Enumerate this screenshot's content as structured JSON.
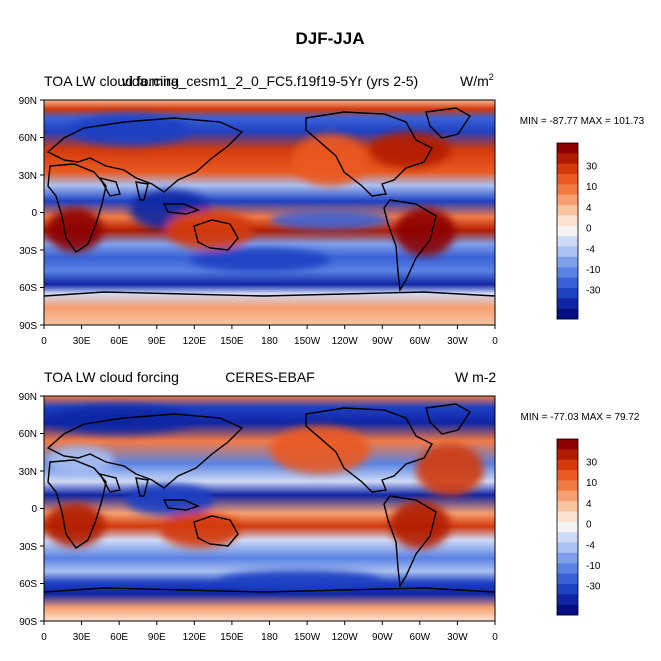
{
  "figure": {
    "title": "DJF-JJA"
  },
  "panels": [
    {
      "left_label": "TOA LW cloud forcing",
      "center_label": "vida.mira_cesm1_2_0_FC5.f19f19-5Yr (yrs 2-5)",
      "units": "W/m",
      "units_sup": "2",
      "stats": "MIN = -87.77 MAX = 101.73"
    },
    {
      "left_label": "TOA LW cloud forcing",
      "center_label": "CERES-EBAF",
      "units": "W m-2",
      "units_sup": "",
      "stats": "MIN = -77.03 MAX =  79.72"
    }
  ],
  "axes": {
    "lat_ticks": [
      "90N",
      "60N",
      "30N",
      "0",
      "30S",
      "60S",
      "90S"
    ],
    "lon_ticks": [
      "0",
      "30E",
      "60E",
      "90E",
      "120E",
      "150E",
      "180",
      "150W",
      "120W",
      "90W",
      "60W",
      "30W",
      "0"
    ]
  },
  "colorbar": {
    "labels": [
      "30",
      "10",
      "4",
      "0",
      "-4",
      "-10",
      "-30"
    ],
    "colors": [
      "#8b0000",
      "#b11c00",
      "#d33a0c",
      "#ea5a22",
      "#f27a45",
      "#f6a072",
      "#f9c3a0",
      "#fbe2cf",
      "#f3f3f3",
      "#cfdbf6",
      "#a9c0f1",
      "#7fa0ea",
      "#5a82e2",
      "#3a62d6",
      "#1f41c2",
      "#0f25a4",
      "#050e80"
    ]
  }
}
